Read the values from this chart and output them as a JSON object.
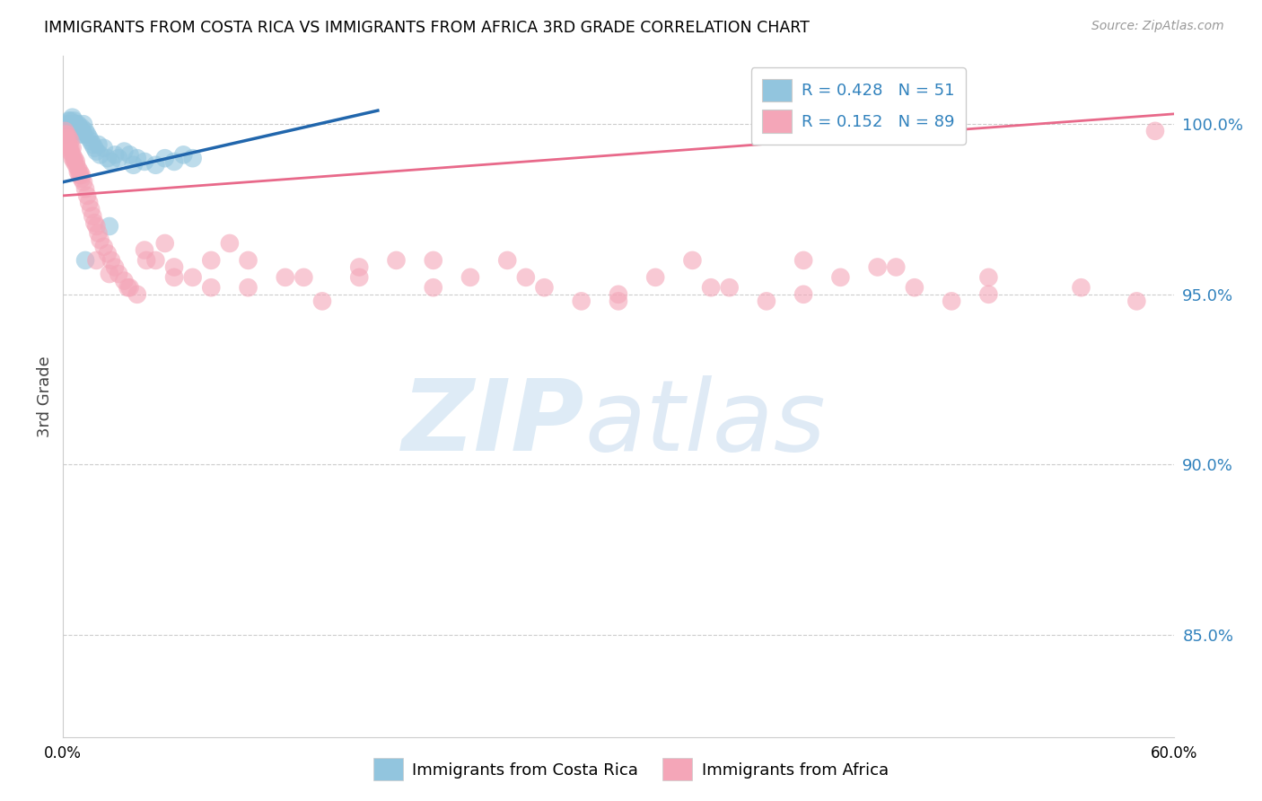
{
  "title": "IMMIGRANTS FROM COSTA RICA VS IMMIGRANTS FROM AFRICA 3RD GRADE CORRELATION CHART",
  "source": "Source: ZipAtlas.com",
  "ylabel": "3rd Grade",
  "y_ticks": [
    0.85,
    0.9,
    0.95,
    1.0
  ],
  "y_tick_labels": [
    "85.0%",
    "90.0%",
    "95.0%",
    "100.0%"
  ],
  "xlim": [
    0.0,
    0.6
  ],
  "ylim": [
    0.82,
    1.02
  ],
  "legend_blue_r": "0.428",
  "legend_blue_n": "51",
  "legend_pink_r": "0.152",
  "legend_pink_n": "89",
  "blue_color": "#92c5de",
  "pink_color": "#f4a6b8",
  "blue_line_color": "#2166ac",
  "pink_line_color": "#e8698a",
  "legend_text_color": "#3182bd",
  "blue_dots_x": [
    0.001,
    0.002,
    0.002,
    0.003,
    0.003,
    0.003,
    0.004,
    0.004,
    0.004,
    0.005,
    0.005,
    0.005,
    0.006,
    0.006,
    0.006,
    0.007,
    0.007,
    0.008,
    0.008,
    0.009,
    0.009,
    0.01,
    0.01,
    0.011,
    0.011,
    0.012,
    0.013,
    0.014,
    0.015,
    0.016,
    0.017,
    0.018,
    0.019,
    0.02,
    0.022,
    0.024,
    0.026,
    0.028,
    0.03,
    0.033,
    0.036,
    0.04,
    0.044,
    0.05,
    0.055,
    0.06,
    0.065,
    0.07,
    0.012,
    0.025,
    0.038
  ],
  "blue_dots_y": [
    0.997,
    1.0,
    0.998,
    1.0,
    0.999,
    1.001,
    1.0,
    0.999,
    1.001,
    0.999,
    1.0,
    1.002,
    0.998,
    1.0,
    1.001,
    0.999,
    1.0,
    0.998,
    1.0,
    0.997,
    0.999,
    0.998,
    0.999,
    0.997,
    1.0,
    0.998,
    0.997,
    0.996,
    0.995,
    0.994,
    0.993,
    0.992,
    0.994,
    0.991,
    0.993,
    0.99,
    0.989,
    0.991,
    0.99,
    0.992,
    0.991,
    0.99,
    0.989,
    0.988,
    0.99,
    0.989,
    0.991,
    0.99,
    0.96,
    0.97,
    0.988
  ],
  "pink_dots_x": [
    0.001,
    0.001,
    0.002,
    0.002,
    0.002,
    0.003,
    0.003,
    0.003,
    0.004,
    0.004,
    0.004,
    0.005,
    0.005,
    0.005,
    0.006,
    0.006,
    0.007,
    0.007,
    0.008,
    0.008,
    0.009,
    0.009,
    0.01,
    0.01,
    0.011,
    0.012,
    0.013,
    0.014,
    0.015,
    0.016,
    0.017,
    0.018,
    0.019,
    0.02,
    0.022,
    0.024,
    0.026,
    0.028,
    0.03,
    0.033,
    0.036,
    0.04,
    0.044,
    0.05,
    0.055,
    0.06,
    0.07,
    0.08,
    0.09,
    0.1,
    0.12,
    0.14,
    0.16,
    0.18,
    0.2,
    0.22,
    0.24,
    0.26,
    0.28,
    0.3,
    0.32,
    0.34,
    0.36,
    0.38,
    0.4,
    0.42,
    0.44,
    0.46,
    0.48,
    0.5,
    0.018,
    0.025,
    0.035,
    0.045,
    0.06,
    0.08,
    0.1,
    0.13,
    0.16,
    0.2,
    0.25,
    0.3,
    0.35,
    0.4,
    0.45,
    0.5,
    0.55,
    0.58,
    0.59
  ],
  "pink_dots_y": [
    0.997,
    0.998,
    0.995,
    0.996,
    0.997,
    0.993,
    0.994,
    0.996,
    0.992,
    0.993,
    0.995,
    0.99,
    0.991,
    0.993,
    0.989,
    0.99,
    0.988,
    0.989,
    0.986,
    0.987,
    0.985,
    0.986,
    0.984,
    0.985,
    0.983,
    0.981,
    0.979,
    0.977,
    0.975,
    0.973,
    0.971,
    0.97,
    0.968,
    0.966,
    0.964,
    0.962,
    0.96,
    0.958,
    0.956,
    0.954,
    0.952,
    0.95,
    0.963,
    0.96,
    0.965,
    0.958,
    0.955,
    0.952,
    0.965,
    0.96,
    0.955,
    0.948,
    0.955,
    0.96,
    0.952,
    0.955,
    0.96,
    0.952,
    0.948,
    0.95,
    0.955,
    0.96,
    0.952,
    0.948,
    0.95,
    0.955,
    0.958,
    0.952,
    0.948,
    0.95,
    0.96,
    0.956,
    0.952,
    0.96,
    0.955,
    0.96,
    0.952,
    0.955,
    0.958,
    0.96,
    0.955,
    0.948,
    0.952,
    0.96,
    0.958,
    0.955,
    0.952,
    0.948,
    0.998
  ]
}
